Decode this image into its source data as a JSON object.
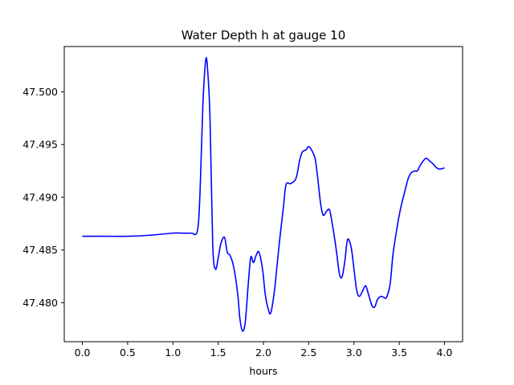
{
  "chart_data": {
    "type": "line",
    "title": "Water Depth h at gauge 10",
    "xlabel": "hours",
    "ylabel": "",
    "xlim": [
      -0.2,
      4.2
    ],
    "ylim": [
      47.4763,
      47.5043
    ],
    "x_ticks": [
      0.0,
      0.5,
      1.0,
      1.5,
      2.0,
      2.5,
      3.0,
      3.5,
      4.0
    ],
    "x_tick_labels": [
      "0.0",
      "0.5",
      "1.0",
      "1.5",
      "2.0",
      "2.5",
      "3.0",
      "3.5",
      "4.0"
    ],
    "y_ticks": [
      47.48,
      47.485,
      47.49,
      47.495,
      47.5
    ],
    "y_tick_labels": [
      "47.480",
      "47.485",
      "47.490",
      "47.495",
      "47.500"
    ],
    "grid": false,
    "legend": "none",
    "series": [
      {
        "color": "#0000ff",
        "x": [
          0.0,
          0.25,
          0.5,
          0.75,
          1.0,
          1.1,
          1.2,
          1.27,
          1.3,
          1.33,
          1.36,
          1.38,
          1.41,
          1.44,
          1.47,
          1.5,
          1.53,
          1.57,
          1.6,
          1.63,
          1.66,
          1.69,
          1.72,
          1.74,
          1.77,
          1.8,
          1.83,
          1.86,
          1.89,
          1.92,
          1.95,
          1.99,
          2.02,
          2.05,
          2.08,
          2.12,
          2.15,
          2.18,
          2.22,
          2.25,
          2.3,
          2.36,
          2.4,
          2.43,
          2.47,
          2.5,
          2.53,
          2.57,
          2.6,
          2.63,
          2.66,
          2.7,
          2.73,
          2.76,
          2.8,
          2.84,
          2.87,
          2.9,
          2.93,
          2.97,
          3.0,
          3.03,
          3.06,
          3.1,
          3.13,
          3.16,
          3.2,
          3.23,
          3.26,
          3.3,
          3.33,
          3.36,
          3.4,
          3.43,
          3.47,
          3.5,
          3.53,
          3.56,
          3.6,
          3.63,
          3.67,
          3.7,
          3.73,
          3.77,
          3.8,
          3.84,
          3.87,
          3.9,
          3.93,
          3.97,
          4.0
        ],
        "y": [
          47.4863,
          47.4863,
          47.4863,
          47.4864,
          47.4866,
          47.4866,
          47.4866,
          47.4868,
          47.4905,
          47.4985,
          47.5028,
          47.5025,
          47.4975,
          47.4855,
          47.4832,
          47.4842,
          47.4856,
          47.4862,
          47.4848,
          47.4845,
          47.4838,
          47.4825,
          47.4805,
          47.4785,
          47.4773,
          47.4782,
          47.4815,
          47.4843,
          47.4838,
          47.4845,
          47.4848,
          47.4832,
          47.4808,
          47.4795,
          47.479,
          47.481,
          47.4835,
          47.486,
          47.489,
          47.4912,
          47.4913,
          47.4918,
          47.4935,
          47.4943,
          47.4945,
          47.4948,
          47.4945,
          47.4937,
          47.4918,
          47.4895,
          47.4883,
          47.4887,
          47.4888,
          47.4875,
          47.4853,
          47.4827,
          47.4825,
          47.484,
          47.486,
          47.4852,
          47.4832,
          47.4812,
          47.4806,
          47.4812,
          47.4816,
          47.4808,
          47.4797,
          47.4796,
          47.4803,
          47.4806,
          47.4805,
          47.4805,
          47.4818,
          47.4845,
          47.4868,
          47.4883,
          47.4895,
          47.4905,
          47.4918,
          47.4923,
          47.4925,
          47.4925,
          47.493,
          47.4935,
          47.4937,
          47.4934,
          47.4932,
          47.4929,
          47.4927,
          47.4927,
          47.4928
        ]
      }
    ]
  }
}
